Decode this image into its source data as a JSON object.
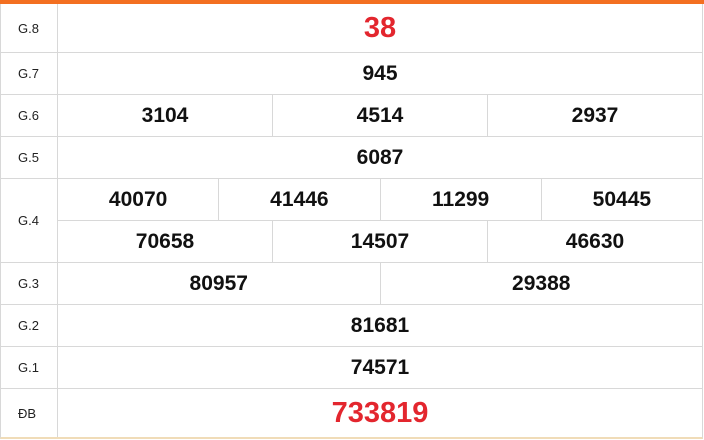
{
  "accent_color": "#f36f21",
  "highlight_color": "#e3262e",
  "rows": [
    {
      "label": "G.8",
      "lines": [
        [
          "38"
        ]
      ]
    },
    {
      "label": "G.7",
      "lines": [
        [
          "945"
        ]
      ]
    },
    {
      "label": "G.6",
      "lines": [
        [
          "3104",
          "4514",
          "2937"
        ]
      ]
    },
    {
      "label": "G.5",
      "lines": [
        [
          "6087"
        ]
      ]
    },
    {
      "label": "G.4",
      "lines": [
        [
          "40070",
          "41446",
          "11299",
          "50445"
        ],
        [
          "70658",
          "14507",
          "46630"
        ]
      ]
    },
    {
      "label": "G.3",
      "lines": [
        [
          "80957",
          "29388"
        ]
      ]
    },
    {
      "label": "G.2",
      "lines": [
        [
          "81681"
        ]
      ]
    },
    {
      "label": "G.1",
      "lines": [
        [
          "74571"
        ]
      ]
    },
    {
      "label": "ĐB",
      "lines": [
        [
          "733819"
        ]
      ]
    }
  ]
}
